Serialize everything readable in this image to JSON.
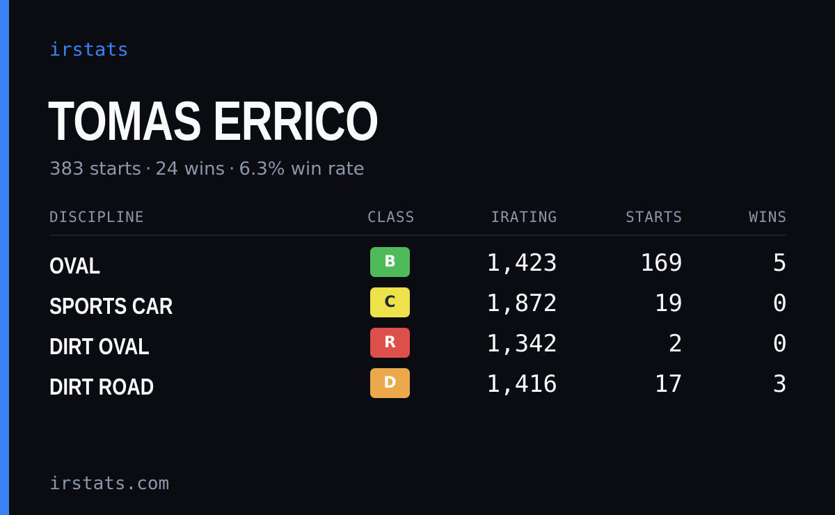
{
  "brand": "irstats",
  "driver": {
    "name": "TOMAS ERRICO",
    "starts": "383 starts",
    "wins": "24 wins",
    "win_rate": "6.3% win rate",
    "separator": "·"
  },
  "table": {
    "headers": {
      "discipline": "DISCIPLINE",
      "class": "CLASS",
      "irating": "IRATING",
      "starts": "STARTS",
      "wins": "WINS"
    },
    "rows": [
      {
        "discipline": "OVAL",
        "class": "B",
        "class_color": "#4fba59",
        "class_text_color": "#ffffff",
        "irating": "1,423",
        "starts": "169",
        "wins": "5"
      },
      {
        "discipline": "SPORTS CAR",
        "class": "C",
        "class_color": "#ede24a",
        "class_text_color": "#1f2937",
        "irating": "1,872",
        "starts": "19",
        "wins": "0"
      },
      {
        "discipline": "DIRT OVAL",
        "class": "R",
        "class_color": "#dc4f4a",
        "class_text_color": "#ffffff",
        "irating": "1,342",
        "starts": "2",
        "wins": "0"
      },
      {
        "discipline": "DIRT ROAD",
        "class": "D",
        "class_color": "#eca94b",
        "class_text_color": "#ffffff",
        "irating": "1,416",
        "starts": "17",
        "wins": "3"
      }
    ]
  },
  "footer": "irstats.com",
  "colors": {
    "background": "#0a0c12",
    "accent": "#3b82f6",
    "muted": "#8b97a8",
    "text": "#f8fafc"
  }
}
